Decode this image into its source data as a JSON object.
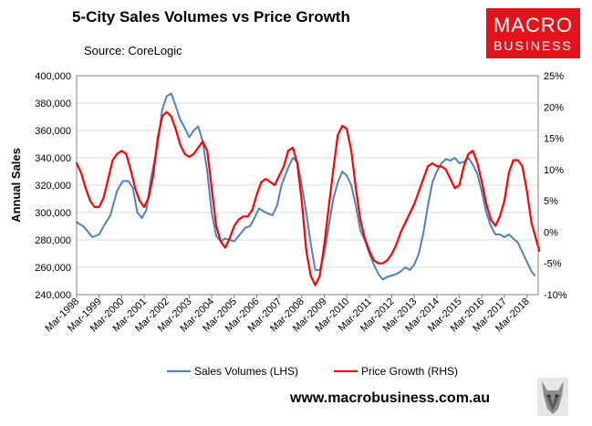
{
  "header": {
    "title": "5-City Sales Volumes vs Price Growth",
    "source": "Source: CoreLogic"
  },
  "logo": {
    "line1": "MACRO",
    "line2": "BUSINESS"
  },
  "footer": {
    "url": "www.macrobusiness.com.au"
  },
  "colors": {
    "sales": "#4f81bd",
    "price": "#ff0000"
  },
  "chart_data": {
    "type": "line",
    "title": "5-City Sales Volumes vs Price Growth",
    "ylabel": "Annual Sales",
    "x_ticks": [
      "Mar-1998",
      "Mar-1999",
      "Mar-2000",
      "Mar-2001",
      "Mar-2002",
      "Mar-2003",
      "Mar-2004",
      "Mar-2005",
      "Mar-2006",
      "Mar-2007",
      "Mar-2008",
      "Mar-2009",
      "Mar-2010",
      "Mar-2011",
      "Mar-2012",
      "Mar-2013",
      "Mar-2014",
      "Mar-2015",
      "Mar-2016",
      "Mar-2017",
      "Mar-2018"
    ],
    "x_range": [
      1998.2,
      2018.7
    ],
    "y_left": {
      "min": 240000,
      "max": 400000,
      "step": 20000,
      "ticks": [
        "240,000",
        "260,000",
        "280,000",
        "300,000",
        "320,000",
        "340,000",
        "360,000",
        "380,000",
        "400,000"
      ]
    },
    "y_right": {
      "min": -10,
      "max": 25,
      "step": 5,
      "ticks": [
        "-10%",
        "-5%",
        "0%",
        "5%",
        "10%",
        "15%",
        "20%",
        "25%"
      ]
    },
    "legend": {
      "placement": "bottom"
    },
    "series": [
      {
        "name": "Sales Volumes (LHS)",
        "axis": "left",
        "color": "#4f81bd",
        "points": [
          [
            1998.2,
            293000
          ],
          [
            1998.5,
            290000
          ],
          [
            1998.9,
            282000
          ],
          [
            1999.2,
            284000
          ],
          [
            1999.4,
            290000
          ],
          [
            1999.7,
            298000
          ],
          [
            2000.0,
            316000
          ],
          [
            2000.25,
            323000
          ],
          [
            2000.5,
            323000
          ],
          [
            2000.7,
            318000
          ],
          [
            2000.9,
            300000
          ],
          [
            2001.1,
            296000
          ],
          [
            2001.3,
            302000
          ],
          [
            2001.5,
            325000
          ],
          [
            2001.8,
            350000
          ],
          [
            2002.0,
            375000
          ],
          [
            2002.2,
            385000
          ],
          [
            2002.4,
            387000
          ],
          [
            2002.6,
            378000
          ],
          [
            2002.8,
            368000
          ],
          [
            2003.0,
            362000
          ],
          [
            2003.2,
            355000
          ],
          [
            2003.4,
            360000
          ],
          [
            2003.6,
            363000
          ],
          [
            2003.8,
            352000
          ],
          [
            2004.0,
            330000
          ],
          [
            2004.2,
            300000
          ],
          [
            2004.4,
            283000
          ],
          [
            2004.6,
            279000
          ],
          [
            2004.8,
            281000
          ],
          [
            2005.0,
            280000
          ],
          [
            2005.2,
            279000
          ],
          [
            2005.4,
            283000
          ],
          [
            2005.7,
            289000
          ],
          [
            2005.9,
            290000
          ],
          [
            2006.1,
            296000
          ],
          [
            2006.3,
            303000
          ],
          [
            2006.6,
            300000
          ],
          [
            2006.9,
            298000
          ],
          [
            2007.1,
            305000
          ],
          [
            2007.3,
            320000
          ],
          [
            2007.6,
            333000
          ],
          [
            2007.8,
            340000
          ],
          [
            2008.0,
            337000
          ],
          [
            2008.2,
            320000
          ],
          [
            2008.4,
            300000
          ],
          [
            2008.6,
            277000
          ],
          [
            2008.8,
            258000
          ],
          [
            2009.0,
            258000
          ],
          [
            2009.2,
            270000
          ],
          [
            2009.4,
            290000
          ],
          [
            2009.6,
            310000
          ],
          [
            2009.8,
            322000
          ],
          [
            2010.0,
            330000
          ],
          [
            2010.2,
            327000
          ],
          [
            2010.4,
            320000
          ],
          [
            2010.6,
            305000
          ],
          [
            2010.8,
            287000
          ],
          [
            2011.0,
            280000
          ],
          [
            2011.2,
            270000
          ],
          [
            2011.4,
            262000
          ],
          [
            2011.6,
            255000
          ],
          [
            2011.8,
            251000
          ],
          [
            2012.0,
            253000
          ],
          [
            2012.2,
            254000
          ],
          [
            2012.4,
            255000
          ],
          [
            2012.6,
            257000
          ],
          [
            2012.8,
            260000
          ],
          [
            2013.0,
            258000
          ],
          [
            2013.2,
            262000
          ],
          [
            2013.4,
            270000
          ],
          [
            2013.6,
            285000
          ],
          [
            2013.8,
            305000
          ],
          [
            2014.0,
            322000
          ],
          [
            2014.2,
            330000
          ],
          [
            2014.4,
            336000
          ],
          [
            2014.6,
            339000
          ],
          [
            2014.8,
            338000
          ],
          [
            2015.0,
            340000
          ],
          [
            2015.2,
            336000
          ],
          [
            2015.4,
            337000
          ],
          [
            2015.6,
            340000
          ],
          [
            2015.8,
            335000
          ],
          [
            2016.0,
            328000
          ],
          [
            2016.2,
            315000
          ],
          [
            2016.4,
            300000
          ],
          [
            2016.6,
            290000
          ],
          [
            2016.8,
            284000
          ],
          [
            2017.0,
            284000
          ],
          [
            2017.2,
            282000
          ],
          [
            2017.4,
            284000
          ],
          [
            2017.6,
            281000
          ],
          [
            2017.8,
            278000
          ],
          [
            2018.0,
            271000
          ],
          [
            2018.2,
            264000
          ],
          [
            2018.4,
            257000
          ],
          [
            2018.55,
            254000
          ]
        ]
      },
      {
        "name": "Price Growth (RHS)",
        "axis": "right",
        "color": "#ff0000",
        "points": [
          [
            1998.2,
            11.0
          ],
          [
            1998.4,
            9.5
          ],
          [
            1998.6,
            7.0
          ],
          [
            1998.8,
            5.0
          ],
          [
            1999.0,
            4.0
          ],
          [
            1999.2,
            4.0
          ],
          [
            1999.4,
            5.5
          ],
          [
            1999.6,
            8.5
          ],
          [
            1999.8,
            11.5
          ],
          [
            2000.0,
            12.5
          ],
          [
            2000.2,
            13.0
          ],
          [
            2000.4,
            12.5
          ],
          [
            2000.6,
            10.0
          ],
          [
            2000.8,
            7.0
          ],
          [
            2001.0,
            5.0
          ],
          [
            2001.2,
            4.0
          ],
          [
            2001.4,
            5.5
          ],
          [
            2001.6,
            9.0
          ],
          [
            2001.8,
            15.0
          ],
          [
            2002.0,
            18.5
          ],
          [
            2002.2,
            19.2
          ],
          [
            2002.4,
            18.5
          ],
          [
            2002.6,
            16.5
          ],
          [
            2002.8,
            14.0
          ],
          [
            2003.0,
            12.5
          ],
          [
            2003.2,
            12.0
          ],
          [
            2003.4,
            12.5
          ],
          [
            2003.6,
            13.5
          ],
          [
            2003.8,
            14.5
          ],
          [
            2004.0,
            13.0
          ],
          [
            2004.2,
            7.0
          ],
          [
            2004.4,
            1.0
          ],
          [
            2004.6,
            -1.5
          ],
          [
            2004.8,
            -2.5
          ],
          [
            2005.0,
            -1.0
          ],
          [
            2005.2,
            1.0
          ],
          [
            2005.4,
            2.0
          ],
          [
            2005.6,
            2.5
          ],
          [
            2005.8,
            2.5
          ],
          [
            2006.0,
            3.5
          ],
          [
            2006.2,
            6.0
          ],
          [
            2006.4,
            8.0
          ],
          [
            2006.6,
            8.5
          ],
          [
            2006.8,
            8.0
          ],
          [
            2007.0,
            7.5
          ],
          [
            2007.2,
            9.0
          ],
          [
            2007.4,
            10.5
          ],
          [
            2007.6,
            13.0
          ],
          [
            2007.8,
            13.5
          ],
          [
            2008.0,
            11.0
          ],
          [
            2008.2,
            5.0
          ],
          [
            2008.4,
            -3.0
          ],
          [
            2008.6,
            -7.0
          ],
          [
            2008.8,
            -8.5
          ],
          [
            2009.0,
            -7.0
          ],
          [
            2009.2,
            -2.0
          ],
          [
            2009.4,
            4.0
          ],
          [
            2009.6,
            10.0
          ],
          [
            2009.8,
            15.5
          ],
          [
            2010.0,
            17.0
          ],
          [
            2010.2,
            16.5
          ],
          [
            2010.4,
            13.0
          ],
          [
            2010.6,
            7.0
          ],
          [
            2010.8,
            2.0
          ],
          [
            2011.0,
            -1.0
          ],
          [
            2011.2,
            -3.0
          ],
          [
            2011.4,
            -4.5
          ],
          [
            2011.6,
            -5.0
          ],
          [
            2011.8,
            -5.0
          ],
          [
            2012.0,
            -4.5
          ],
          [
            2012.2,
            -3.5
          ],
          [
            2012.4,
            -2.0
          ],
          [
            2012.6,
            0.0
          ],
          [
            2012.8,
            1.5
          ],
          [
            2013.0,
            3.0
          ],
          [
            2013.2,
            4.5
          ],
          [
            2013.4,
            6.5
          ],
          [
            2013.6,
            8.5
          ],
          [
            2013.8,
            10.5
          ],
          [
            2014.0,
            11.0
          ],
          [
            2014.2,
            10.5
          ],
          [
            2014.4,
            10.5
          ],
          [
            2014.6,
            10.0
          ],
          [
            2014.8,
            8.5
          ],
          [
            2015.0,
            7.0
          ],
          [
            2015.2,
            7.5
          ],
          [
            2015.4,
            10.5
          ],
          [
            2015.6,
            12.5
          ],
          [
            2015.8,
            13.0
          ],
          [
            2016.0,
            11.0
          ],
          [
            2016.2,
            8.0
          ],
          [
            2016.4,
            4.5
          ],
          [
            2016.6,
            2.0
          ],
          [
            2016.8,
            1.0
          ],
          [
            2017.0,
            2.5
          ],
          [
            2017.2,
            5.0
          ],
          [
            2017.4,
            9.5
          ],
          [
            2017.6,
            11.5
          ],
          [
            2017.8,
            11.5
          ],
          [
            2018.0,
            10.5
          ],
          [
            2018.2,
            6.5
          ],
          [
            2018.4,
            1.5
          ],
          [
            2018.6,
            -1.0
          ],
          [
            2018.75,
            -3.0
          ]
        ]
      }
    ]
  }
}
